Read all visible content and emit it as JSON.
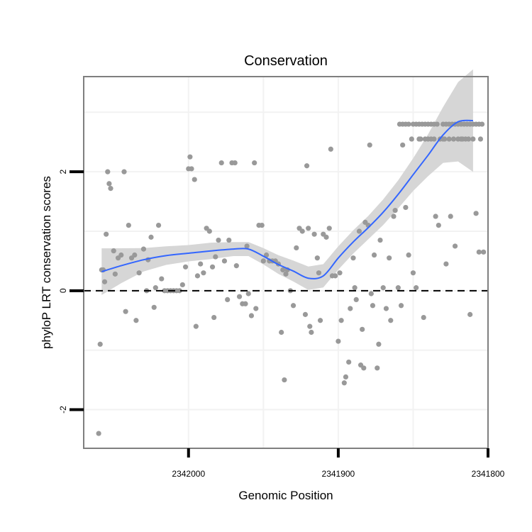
{
  "chart_data": {
    "type": "scatter",
    "title": "Conservation",
    "xlabel": "Genomic Position",
    "ylabel": "phyloP LRT conservation scores",
    "x_reversed": true,
    "xlim": [
      2342070,
      2341800
    ],
    "ylim": [
      -2.65,
      3.6
    ],
    "x_ticks": [
      2342000,
      2341900,
      2341800
    ],
    "x_tick_labels": [
      "2342000",
      "2341900",
      "2341800"
    ],
    "y_ticks": [
      -2,
      0,
      2
    ],
    "y_tick_labels": [
      "-2",
      "0",
      "2"
    ],
    "grid": true,
    "reference_line": {
      "y": 0,
      "style": "dashed"
    },
    "colors": {
      "points": "#999999",
      "smooth_line": "#3366FF",
      "ribbon": "#d4d4d4",
      "panel_border": "#7f7f7f",
      "grid": "#f2f2f2"
    },
    "smooth": {
      "x": [
        2342058,
        2342045,
        2342030,
        2342015,
        2342000,
        2341985,
        2341970,
        2341960,
        2341950,
        2341940,
        2341930,
        2341920,
        2341910,
        2341900,
        2341890,
        2341880,
        2341870,
        2341860,
        2341850,
        2341840,
        2341830,
        2341820,
        2341810
      ],
      "y": [
        0.32,
        0.42,
        0.52,
        0.59,
        0.63,
        0.67,
        0.7,
        0.7,
        0.58,
        0.44,
        0.33,
        0.21,
        0.25,
        0.55,
        0.82,
        1.06,
        1.32,
        1.62,
        1.95,
        2.28,
        2.62,
        2.84,
        2.86
      ],
      "se": [
        0.2,
        0.15,
        0.1,
        0.08,
        0.07,
        0.07,
        0.06,
        0.06,
        0.07,
        0.08,
        0.09,
        0.1,
        0.1,
        0.1,
        0.1,
        0.1,
        0.11,
        0.12,
        0.14,
        0.18,
        0.24,
        0.34,
        0.44
      ]
    },
    "points": [
      [
        2342060,
        -2.4
      ],
      [
        2342059,
        -0.9
      ],
      [
        2342058,
        0.35
      ],
      [
        2342057,
        0.35
      ],
      [
        2342056,
        0.15
      ],
      [
        2342055,
        0.95
      ],
      [
        2342054,
        2.0
      ],
      [
        2342053,
        1.8
      ],
      [
        2342052,
        1.72
      ],
      [
        2342050,
        0.67
      ],
      [
        2342049,
        0.28
      ],
      [
        2342047,
        0.55
      ],
      [
        2342045,
        0.6
      ],
      [
        2342043,
        2.0
      ],
      [
        2342042,
        -0.35
      ],
      [
        2342040,
        1.1
      ],
      [
        2342038,
        0.55
      ],
      [
        2342036,
        0.6
      ],
      [
        2342035,
        -0.5
      ],
      [
        2342033,
        0.3
      ],
      [
        2342030,
        0.7
      ],
      [
        2342028,
        0.0
      ],
      [
        2342027,
        0.52
      ],
      [
        2342025,
        0.9
      ],
      [
        2342023,
        -0.28
      ],
      [
        2342022,
        0.05
      ],
      [
        2342020,
        1.1
      ],
      [
        2342018,
        0.2
      ],
      [
        2342016,
        0.0
      ],
      [
        2342014,
        0.0
      ],
      [
        2342012,
        0.0
      ],
      [
        2342010,
        0.0
      ],
      [
        2342008,
        0.0
      ],
      [
        2342006,
        0.0
      ],
      [
        2342004,
        0.1
      ],
      [
        2342002,
        0.4
      ],
      [
        2342000,
        2.05
      ],
      [
        2341999,
        2.25
      ],
      [
        2341998,
        2.05
      ],
      [
        2341996,
        1.87
      ],
      [
        2341995,
        -0.6
      ],
      [
        2341994,
        0.25
      ],
      [
        2341992,
        0.45
      ],
      [
        2341990,
        0.3
      ],
      [
        2341988,
        1.05
      ],
      [
        2341986,
        1.0
      ],
      [
        2341984,
        0.4
      ],
      [
        2341983,
        -0.45
      ],
      [
        2341982,
        0.57
      ],
      [
        2341980,
        0.85
      ],
      [
        2341978,
        2.15
      ],
      [
        2341976,
        0.5
      ],
      [
        2341974,
        -0.15
      ],
      [
        2341973,
        0.85
      ],
      [
        2341971,
        2.15
      ],
      [
        2341969,
        2.15
      ],
      [
        2341968,
        0.42
      ],
      [
        2341966,
        -0.1
      ],
      [
        2341964,
        -0.22
      ],
      [
        2341962,
        -0.22
      ],
      [
        2341961,
        0.75
      ],
      [
        2341960,
        -0.05
      ],
      [
        2341958,
        -0.42
      ],
      [
        2341956,
        2.15
      ],
      [
        2341955,
        -0.3
      ],
      [
        2341953,
        1.1
      ],
      [
        2341951,
        1.1
      ],
      [
        2341950,
        0.5
      ],
      [
        2341948,
        0.6
      ],
      [
        2341946,
        0.5
      ],
      [
        2341944,
        0.5
      ],
      [
        2341942,
        0.5
      ],
      [
        2341940,
        0.45
      ],
      [
        2341938,
        -0.7
      ],
      [
        2341937,
        0.35
      ],
      [
        2341936,
        -1.5
      ],
      [
        2341935,
        0.28
      ],
      [
        2341934,
        0.35
      ],
      [
        2341932,
        0.0
      ],
      [
        2341930,
        -0.25
      ],
      [
        2341928,
        0.72
      ],
      [
        2341926,
        1.05
      ],
      [
        2341924,
        1.0
      ],
      [
        2341922,
        -0.4
      ],
      [
        2341921,
        2.1
      ],
      [
        2341920,
        1.05
      ],
      [
        2341919,
        -0.6
      ],
      [
        2341918,
        -0.7
      ],
      [
        2341916,
        0.95
      ],
      [
        2341914,
        0.55
      ],
      [
        2341913,
        0.3
      ],
      [
        2341912,
        -0.5
      ],
      [
        2341910,
        0.95
      ],
      [
        2341908,
        0.9
      ],
      [
        2341906,
        1.05
      ],
      [
        2341905,
        2.38
      ],
      [
        2341904,
        0.25
      ],
      [
        2341902,
        0.25
      ],
      [
        2341900,
        -0.85
      ],
      [
        2341899,
        0.3
      ],
      [
        2341898,
        -0.5
      ],
      [
        2341896,
        -1.55
      ],
      [
        2341895,
        -1.45
      ],
      [
        2341893,
        -1.2
      ],
      [
        2341892,
        -0.3
      ],
      [
        2341890,
        0.55
      ],
      [
        2341889,
        0.05
      ],
      [
        2341888,
        -0.15
      ],
      [
        2341886,
        1.0
      ],
      [
        2341885,
        -1.25
      ],
      [
        2341884,
        -0.65
      ],
      [
        2341883,
        -1.3
      ],
      [
        2341882,
        1.15
      ],
      [
        2341880,
        1.1
      ],
      [
        2341879,
        2.45
      ],
      [
        2341878,
        -0.05
      ],
      [
        2341877,
        -0.25
      ],
      [
        2341876,
        0.6
      ],
      [
        2341874,
        -1.3
      ],
      [
        2341873,
        -0.9
      ],
      [
        2341872,
        0.85
      ],
      [
        2341870,
        0.05
      ],
      [
        2341868,
        -0.3
      ],
      [
        2341866,
        0.55
      ],
      [
        2341865,
        -0.5
      ],
      [
        2341863,
        1.25
      ],
      [
        2341862,
        1.35
      ],
      [
        2341860,
        0.05
      ],
      [
        2341858,
        -0.25
      ],
      [
        2341857,
        2.45
      ],
      [
        2341855,
        1.4
      ],
      [
        2341853,
        0.6
      ],
      [
        2341851,
        2.55
      ],
      [
        2341850,
        0.3
      ],
      [
        2341848,
        0.05
      ],
      [
        2341846,
        2.55
      ],
      [
        2341845,
        2.55
      ],
      [
        2341843,
        -0.45
      ],
      [
        2341842,
        2.55
      ],
      [
        2341840,
        2.55
      ],
      [
        2341838,
        2.55
      ],
      [
        2341836,
        2.55
      ],
      [
        2341835,
        1.25
      ],
      [
        2341833,
        1.1
      ],
      [
        2341832,
        2.55
      ],
      [
        2341830,
        2.55
      ],
      [
        2341829,
        2.55
      ],
      [
        2341828,
        0.45
      ],
      [
        2341826,
        2.55
      ],
      [
        2341825,
        1.25
      ],
      [
        2341823,
        2.55
      ],
      [
        2341822,
        0.75
      ],
      [
        2341820,
        2.55
      ],
      [
        2341818,
        2.55
      ],
      [
        2341817,
        2.55
      ],
      [
        2341815,
        2.55
      ],
      [
        2341813,
        2.55
      ],
      [
        2341812,
        -0.4
      ],
      [
        2341810,
        2.55
      ],
      [
        2341808,
        1.3
      ],
      [
        2341806,
        0.65
      ],
      [
        2341805,
        2.55
      ],
      [
        2341803,
        0.65
      ],
      [
        2341859,
        2.8
      ],
      [
        2341857,
        2.8
      ],
      [
        2341855,
        2.8
      ],
      [
        2341853,
        2.8
      ],
      [
        2341850,
        2.8
      ],
      [
        2341848,
        2.8
      ],
      [
        2341846,
        2.8
      ],
      [
        2341844,
        2.8
      ],
      [
        2341842,
        2.8
      ],
      [
        2341840,
        2.8
      ],
      [
        2341838,
        2.8
      ],
      [
        2341836,
        2.8
      ],
      [
        2341834,
        2.8
      ],
      [
        2341830,
        2.8
      ],
      [
        2341828,
        2.8
      ],
      [
        2341826,
        2.8
      ],
      [
        2341824,
        2.8
      ],
      [
        2341822,
        2.8
      ],
      [
        2341820,
        2.8
      ],
      [
        2341818,
        2.8
      ],
      [
        2341816,
        2.8
      ],
      [
        2341814,
        2.8
      ],
      [
        2341812,
        2.8
      ],
      [
        2341810,
        2.8
      ],
      [
        2341808,
        2.8
      ],
      [
        2341806,
        2.8
      ],
      [
        2341804,
        2.8
      ]
    ]
  }
}
